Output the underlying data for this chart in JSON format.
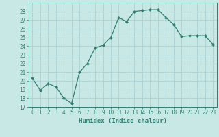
{
  "x": [
    0,
    1,
    2,
    3,
    4,
    5,
    6,
    7,
    8,
    9,
    10,
    11,
    12,
    13,
    14,
    15,
    16,
    17,
    18,
    19,
    20,
    21,
    22,
    23
  ],
  "y": [
    20.3,
    18.9,
    19.7,
    19.3,
    18.0,
    17.4,
    21.0,
    22.0,
    23.8,
    24.1,
    25.0,
    27.3,
    26.8,
    28.0,
    28.1,
    28.2,
    28.2,
    27.3,
    26.5,
    25.1,
    25.2,
    25.2,
    25.2,
    24.2
  ],
  "line_color": "#2e7d6e",
  "marker": "D",
  "marker_size": 2.2,
  "bg_color": "#c8e8e5",
  "grid_color": "#a8cece",
  "xlabel": "Humidex (Indice chaleur)",
  "ylim": [
    17,
    29
  ],
  "xlim": [
    -0.5,
    23.5
  ],
  "yticks": [
    17,
    18,
    19,
    20,
    21,
    22,
    23,
    24,
    25,
    26,
    27,
    28
  ],
  "xticks": [
    0,
    1,
    2,
    3,
    4,
    5,
    6,
    7,
    8,
    9,
    10,
    11,
    12,
    13,
    14,
    15,
    16,
    17,
    18,
    19,
    20,
    21,
    22,
    23
  ],
  "tick_fontsize": 5.5,
  "xlabel_fontsize": 6.5,
  "axis_color": "#2e7d6e",
  "tick_color": "#2e7d6e",
  "line_width": 0.9
}
